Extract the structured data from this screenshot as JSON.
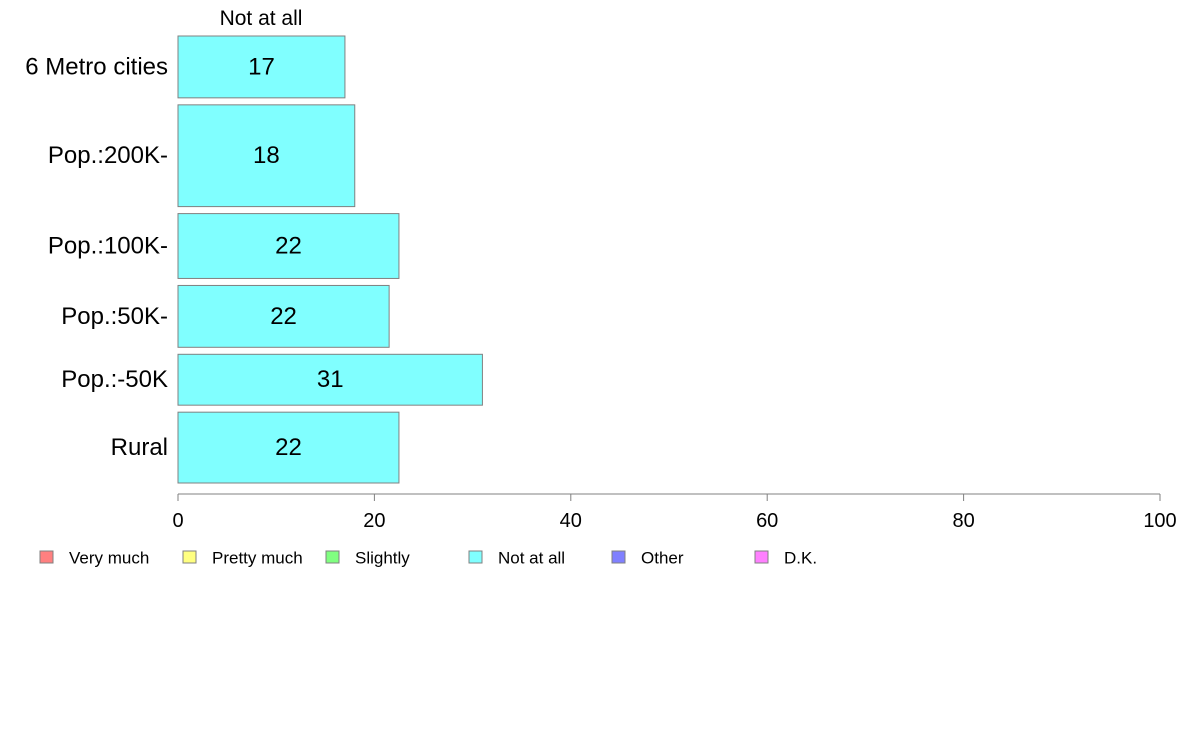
{
  "chart_data": {
    "type": "bar",
    "orientation": "horizontal",
    "stacked": true,
    "column_header": "Not at all",
    "categories": [
      "6 Metro cities",
      "Pop.:200K-",
      "Pop.:100K-",
      "Pop.:50K-",
      "Pop.:-50K",
      "Rural"
    ],
    "relative_bar_thickness": [
      62,
      102,
      65,
      62,
      51,
      71
    ],
    "series": [
      {
        "name": "Not at all",
        "color": "#80ffff",
        "values": [
          17,
          18,
          22.5,
          21.5,
          31,
          22.5
        ],
        "labels": [
          "17",
          "18",
          "22",
          "22",
          "31",
          "22"
        ]
      }
    ],
    "xlim": [
      0,
      100
    ],
    "x_ticks": [
      "0",
      "20",
      "40",
      "60",
      "80",
      "100"
    ],
    "legend": [
      {
        "label": "Very much",
        "color": "#ff8080"
      },
      {
        "label": "Pretty much",
        "color": "#ffff80"
      },
      {
        "label": "Slightly",
        "color": "#80ff80"
      },
      {
        "label": "Not at all",
        "color": "#80ffff"
      },
      {
        "label": "Other",
        "color": "#8080ff"
      },
      {
        "label": "D.K.",
        "color": "#ff80ff"
      }
    ],
    "legend_position": "bottom-left",
    "grid": false,
    "bar_border_color": "#808080",
    "axis_color": "#808080"
  }
}
